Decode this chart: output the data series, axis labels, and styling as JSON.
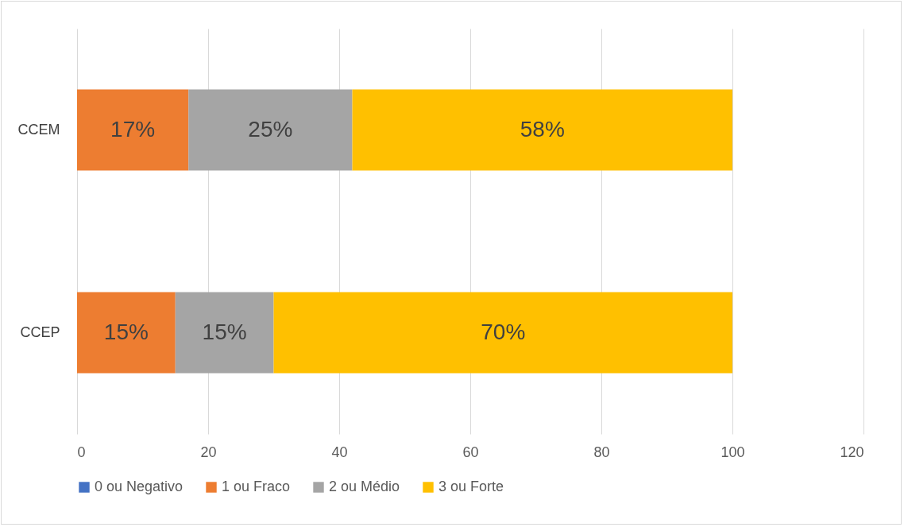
{
  "chart_data": {
    "type": "bar",
    "orientation": "horizontal",
    "stacked": true,
    "categories": [
      "CCEM",
      "CCEP"
    ],
    "series": [
      {
        "name": "0 ou Negativo",
        "color": "#4472c4",
        "values": [
          0,
          0
        ],
        "value_labels": [
          null,
          null
        ]
      },
      {
        "name": "1 ou Fraco",
        "color": "#ed7d31",
        "values": [
          17,
          15
        ],
        "value_labels": [
          "17%",
          "15%"
        ]
      },
      {
        "name": "2 ou Médio",
        "color": "#a5a5a5",
        "values": [
          25,
          15
        ],
        "value_labels": [
          "25%",
          "15%"
        ]
      },
      {
        "name": "3 ou Forte",
        "color": "#ffc000",
        "values": [
          58,
          70
        ],
        "value_labels": [
          "58%",
          "70%"
        ]
      }
    ],
    "xlim": [
      0,
      120
    ],
    "xticks": [
      0,
      20,
      40,
      60,
      80,
      100,
      120
    ],
    "grid": "x",
    "legend": "bottom"
  }
}
